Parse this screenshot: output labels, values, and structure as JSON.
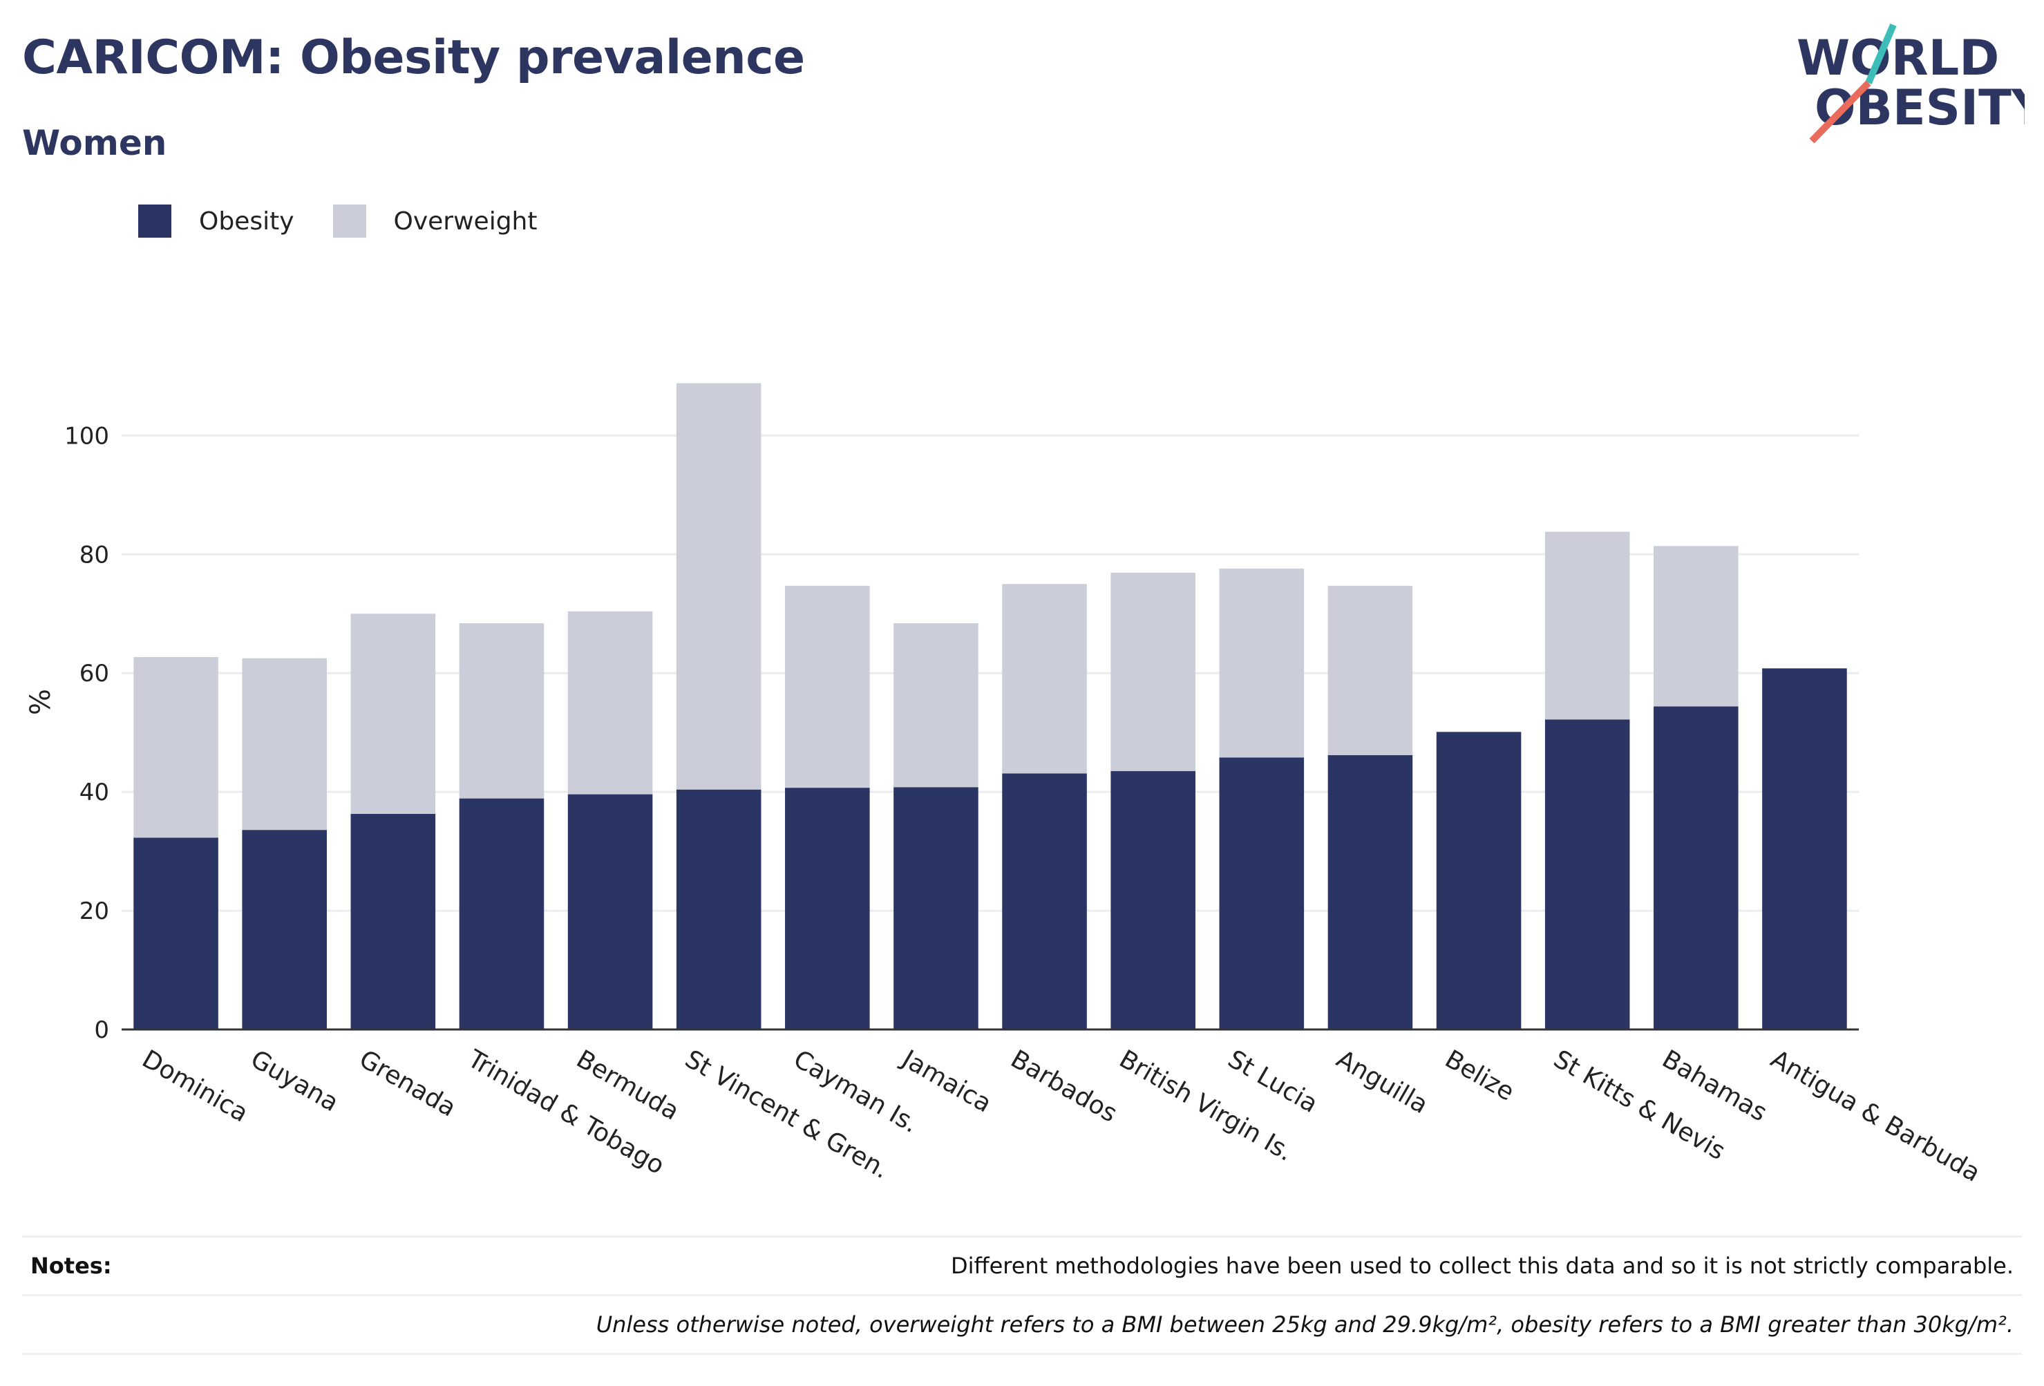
{
  "title": "CARICOM: Obesity prevalence",
  "subtitle": "Women",
  "logo": {
    "line1": "WORLD",
    "line2": "OBESITY"
  },
  "legend": [
    {
      "name": "Obesity",
      "color": "#2b3563"
    },
    {
      "name": "Overweight",
      "color": "#cbcdd9"
    }
  ],
  "notes": {
    "label": "Notes:",
    "text1": "Different methodologies have been used to collect this data and so it is not strictly comparable.",
    "text2": "Unless otherwise noted, overweight refers to a BMI between 25kg and 29.9kg/m², obesity refers to a BMI greater than 30kg/m²."
  },
  "chart_data": {
    "type": "bar",
    "stacked": true,
    "categories": [
      "Dominica",
      "Guyana",
      "Grenada",
      "Trinidad & Tobago",
      "Bermuda",
      "St Vincent & Gren.",
      "Cayman Is.",
      "Jamaica",
      "Barbados",
      "British Virgin Is.",
      "St Lucia",
      "Anguilla",
      "Belize",
      "St Kitts & Nevis",
      "Bahamas",
      "Antigua & Barbuda"
    ],
    "series": [
      {
        "name": "Obesity",
        "color": "#2b3563",
        "values": [
          32.3,
          33.6,
          36.3,
          38.9,
          39.6,
          40.4,
          40.7,
          40.8,
          43.1,
          43.5,
          45.8,
          46.2,
          50.1,
          52.2,
          54.4,
          60.8
        ]
      },
      {
        "name": "Overweight",
        "color": "#cbcdd9",
        "values": [
          30.4,
          28.9,
          33.7,
          29.5,
          30.8,
          68.4,
          34.0,
          27.6,
          31.9,
          33.4,
          31.8,
          28.5,
          0,
          31.6,
          27.0,
          0
        ]
      }
    ],
    "ylabel": "%",
    "ylim": [
      0,
      114
    ],
    "yticks": [
      0,
      20,
      40,
      60,
      80,
      100
    ],
    "grid": true,
    "legend_position": "top-left"
  }
}
